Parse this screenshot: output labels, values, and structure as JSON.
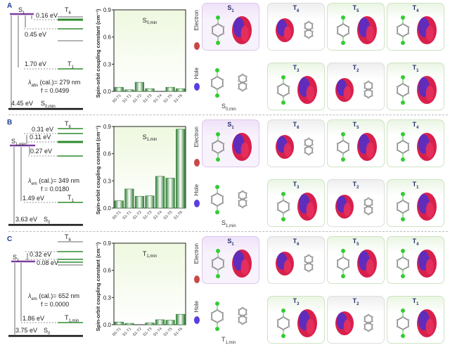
{
  "figure": {
    "panels": [
      {
        "label": "A",
        "energy_diagram": {
          "singlet_label": "S",
          "singlet_sub": "1",
          "top_triplet_label": "T",
          "top_triplet_sub": "6",
          "gap1": "0.16 eV",
          "gap2": "0.45 eV",
          "gap3": "1.70 eV",
          "t1_label": "T",
          "t1_sub": "1",
          "lambda_prefix": "λ",
          "lambda_sub": "abs",
          "lambda_text": " (cal.)= 279 nm",
          "f_text": "f = 0.0499",
          "ground_gap": "4.45 eV",
          "ground_label": "S",
          "ground_sub": "0,min"
        },
        "molecule_geometry": {
          "label": "S",
          "sub": "0,min"
        },
        "orbital_cards": [
          {
            "label": "S",
            "sub": "1"
          },
          {
            "label": "T",
            "sub": "6"
          },
          {
            "label": "T",
            "sub": "5"
          },
          {
            "label": "T",
            "sub": "4"
          },
          {
            "label": "T",
            "sub": "3"
          },
          {
            "label": "T",
            "sub": "2"
          },
          {
            "label": "T",
            "sub": "1"
          }
        ]
      },
      {
        "label": "B",
        "energy_diagram": {
          "singlet_label": "S",
          "singlet_sub": "1,min",
          "top_triplet_label": "T",
          "top_triplet_sub": "6",
          "gap1": "0.31 eV",
          "gap2": "0.11 eV",
          "gap3": "0.27 eV",
          "gap4": "1.49 eV",
          "t1_label": "T",
          "t1_sub": "1",
          "lambda_prefix": "λ",
          "lambda_sub": "em",
          "lambda_text": " (cal.)= 349 nm",
          "f_text": "f = 0.0180",
          "ground_gap": "3.63 eV",
          "ground_label": "S",
          "ground_sub": "0"
        },
        "molecule_geometry": {
          "label": "S",
          "sub": "1,min"
        },
        "orbital_cards": [
          {
            "label": "S",
            "sub": "1"
          },
          {
            "label": "T",
            "sub": "6"
          },
          {
            "label": "T",
            "sub": "5"
          },
          {
            "label": "T",
            "sub": "4"
          },
          {
            "label": "T",
            "sub": "3"
          },
          {
            "label": "T",
            "sub": "2"
          },
          {
            "label": "T",
            "sub": "1"
          }
        ]
      },
      {
        "label": "C",
        "energy_diagram": {
          "singlet_label": "S",
          "singlet_sub": "1",
          "top_triplet_label": "T",
          "top_triplet_sub": "6",
          "gap1": "0.32 eV",
          "gap2": "0.08 eV",
          "gap3": "1.86 eV",
          "t1_label": "T",
          "t1_sub": "1,min",
          "lambda_prefix": "λ",
          "lambda_sub": "em",
          "lambda_text": " (cal.)= 652 nm",
          "f_text": "f = 0.0000",
          "ground_gap": "3.75 eV",
          "ground_label": "S",
          "ground_sub": "0"
        },
        "molecule_geometry": {
          "label": "T",
          "sub": "1,min"
        },
        "orbital_cards": [
          {
            "label": "S",
            "sub": "1"
          },
          {
            "label": "T",
            "sub": "6"
          },
          {
            "label": "T",
            "sub": "5"
          },
          {
            "label": "T",
            "sub": "4"
          },
          {
            "label": "T",
            "sub": "3"
          },
          {
            "label": "T",
            "sub": "2"
          },
          {
            "label": "T",
            "sub": "1"
          }
        ]
      }
    ],
    "legend": {
      "electron": "Electron",
      "hole": "Hole",
      "electron_color": "#c94848",
      "hole_color": "#5a3ee0"
    },
    "colors": {
      "singlet": "#7b3fa0",
      "triplet": "#2e8b2e",
      "triplet_grey": "#888888",
      "ground": "#111111",
      "bar_edge": "#2e7d32",
      "plot_bg_top": "#f1f9e4"
    }
  },
  "chart_data": [
    {
      "type": "bar",
      "title": "S0,min",
      "ylabel": "Spin-orbit coupling constant (cm-1)",
      "xlabel": "",
      "categories": [
        "S0-T1",
        "S1-T1",
        "S1-T2",
        "S1-T3",
        "S1-T4",
        "S1-T5",
        "S1-T6"
      ],
      "values": [
        0.045,
        0.018,
        0.1,
        0.03,
        0.0,
        0.045,
        0.03
      ],
      "ylim": [
        0,
        0.9
      ],
      "yticks": [
        "0.0",
        "0.3",
        "0.6",
        "0.9"
      ],
      "grid": false,
      "legend": "none"
    },
    {
      "type": "bar",
      "title": "S1,min",
      "ylabel": "Spin-orbit coupling constant (cm-1)",
      "xlabel": "",
      "categories": [
        "S0-T1",
        "S1-T1",
        "S1-T2",
        "S1-T3",
        "S1-T4",
        "S1-T5",
        "S1-T6"
      ],
      "values": [
        0.08,
        0.21,
        0.13,
        0.135,
        0.35,
        0.33,
        0.87
      ],
      "ylim": [
        0,
        0.9
      ],
      "yticks": [
        "0.0",
        "0.3",
        "0.6",
        "0.9"
      ],
      "grid": false,
      "legend": "none"
    },
    {
      "type": "bar",
      "title": "T1,min",
      "ylabel": "Spin-orbit coupling constant (cm-1)",
      "xlabel": "",
      "categories": [
        "S0-T1",
        "S1-T1",
        "S1-T2",
        "S1-T3",
        "S1-T4",
        "S1-T5",
        "S1-T6"
      ],
      "values": [
        0.03,
        0.015,
        0.0,
        0.02,
        0.055,
        0.05,
        0.115
      ],
      "ylim": [
        0,
        0.9
      ],
      "yticks": [
        "0.0",
        "0.3",
        "0.6",
        "0.9"
      ],
      "grid": false,
      "legend": "none"
    }
  ]
}
